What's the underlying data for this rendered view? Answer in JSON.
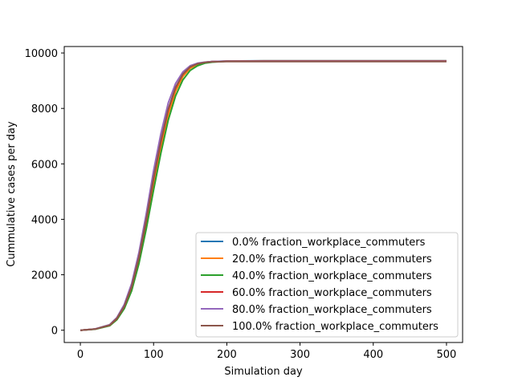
{
  "chart_data": {
    "type": "line",
    "xlabel": "Simulation day",
    "ylabel": "Cummulative cases per day",
    "xlim": [
      -22,
      522
    ],
    "ylim": [
      -443,
      10233
    ],
    "xticks": [
      0,
      100,
      200,
      300,
      400,
      500
    ],
    "yticks": [
      0,
      2000,
      4000,
      6000,
      8000,
      10000
    ],
    "grid": false,
    "legend_position": "lower-right",
    "series": [
      {
        "name": "0.0% fraction_workplace_commuters",
        "color": "#1f77b4",
        "x": [
          0,
          20,
          40,
          50,
          60,
          70,
          80,
          90,
          100,
          110,
          120,
          130,
          140,
          150,
          160,
          170,
          180,
          200,
          250,
          300,
          400,
          500
        ],
        "y": [
          0,
          40,
          180,
          420,
          850,
          1550,
          2600,
          3900,
          5400,
          6750,
          7900,
          8700,
          9200,
          9480,
          9600,
          9660,
          9690,
          9710,
          9720,
          9720,
          9720,
          9720
        ]
      },
      {
        "name": "20.0% fraction_workplace_commuters",
        "color": "#ff7f0e",
        "x": [
          0,
          20,
          40,
          50,
          60,
          70,
          80,
          90,
          100,
          110,
          120,
          130,
          140,
          150,
          160,
          170,
          180,
          200,
          250,
          300,
          400,
          500
        ],
        "y": [
          0,
          40,
          175,
          410,
          830,
          1500,
          2520,
          3800,
          5250,
          6600,
          7780,
          8620,
          9150,
          9450,
          9580,
          9650,
          9685,
          9705,
          9715,
          9715,
          9715,
          9715
        ]
      },
      {
        "name": "40.0% fraction_workplace_commuters",
        "color": "#2ca02c",
        "x": [
          0,
          20,
          40,
          50,
          60,
          70,
          80,
          90,
          100,
          110,
          120,
          130,
          140,
          150,
          160,
          170,
          180,
          200,
          250,
          300,
          400,
          500
        ],
        "y": [
          0,
          35,
          160,
          380,
          780,
          1420,
          2400,
          3650,
          5050,
          6400,
          7580,
          8450,
          9030,
          9370,
          9540,
          9630,
          9670,
          9700,
          9710,
          9710,
          9710,
          9710
        ]
      },
      {
        "name": "60.0% fraction_workplace_commuters",
        "color": "#d62728",
        "x": [
          0,
          20,
          40,
          50,
          60,
          70,
          80,
          90,
          100,
          110,
          120,
          130,
          140,
          150,
          160,
          170,
          180,
          200,
          250,
          300,
          400,
          500
        ],
        "y": [
          0,
          40,
          180,
          420,
          860,
          1560,
          2620,
          3950,
          5450,
          6800,
          7950,
          8740,
          9230,
          9500,
          9610,
          9665,
          9690,
          9705,
          9710,
          9710,
          9710,
          9710
        ]
      },
      {
        "name": "80.0% fraction_workplace_commuters",
        "color": "#9467bd",
        "x": [
          0,
          20,
          40,
          50,
          60,
          70,
          80,
          90,
          100,
          110,
          120,
          130,
          140,
          150,
          160,
          170,
          180,
          200,
          250,
          300,
          400,
          500
        ],
        "y": [
          0,
          45,
          200,
          460,
          930,
          1680,
          2800,
          4200,
          5750,
          7100,
          8200,
          8900,
          9320,
          9540,
          9630,
          9670,
          9690,
          9700,
          9700,
          9700,
          9700,
          9700
        ]
      },
      {
        "name": "100.0% fraction_workplace_commuters",
        "color": "#8c564b",
        "x": [
          0,
          20,
          40,
          50,
          60,
          70,
          80,
          90,
          100,
          110,
          120,
          130,
          140,
          150,
          160,
          170,
          180,
          200,
          250,
          300,
          400,
          500
        ],
        "y": [
          0,
          40,
          185,
          430,
          870,
          1580,
          2650,
          4000,
          5500,
          6850,
          7980,
          8760,
          9240,
          9500,
          9610,
          9660,
          9680,
          9690,
          9690,
          9690,
          9690,
          9690
        ]
      }
    ]
  }
}
